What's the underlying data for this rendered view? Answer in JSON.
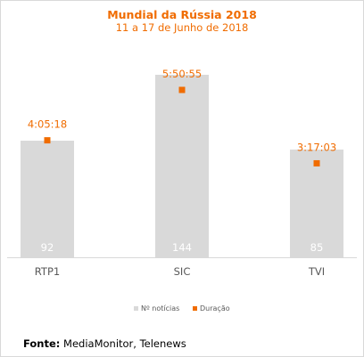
{
  "chart_data": {
    "type": "bar",
    "title": "Mundial da Rússia 2018",
    "subtitle": "11 a 17 de Junho de 2018",
    "categories": [
      "RTP1",
      "SIC",
      "TVI"
    ],
    "series": [
      {
        "name": "Nº notícias",
        "values": [
          92,
          144,
          85
        ],
        "color": "#d9d9d9"
      },
      {
        "name": "Duração",
        "values": [
          4.088,
          5.849,
          3.284
        ],
        "labels": [
          "4:05:18",
          "5:50:55",
          "3:17:03"
        ],
        "color": "#f06c00"
      }
    ],
    "legend_position": "bottom",
    "grid": false
  },
  "source": {
    "label": "Fonte:",
    "text": " MediaMonitor, Telenews"
  }
}
